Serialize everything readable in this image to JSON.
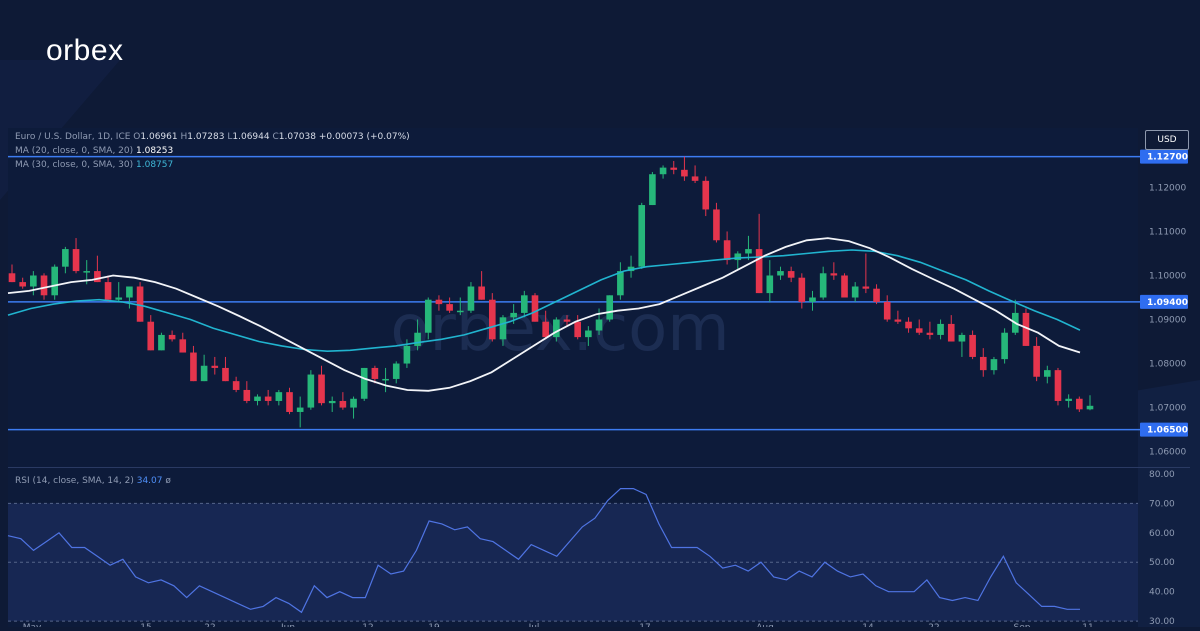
{
  "brand": {
    "logo_text": "orbex",
    "watermark": "orbex.com"
  },
  "legend": {
    "symbol": "Euro / U.S. Dollar, 1D, ICE",
    "o_label": "O",
    "o": "1.06961",
    "h_label": "H",
    "h": "1.07283",
    "l_label": "L",
    "l": "1.06944",
    "c_label": "C",
    "c": "1.07038",
    "change": "+0.00073 (+0.07%)",
    "ma20_label": "MA (20, close, 0, SMA, 20)",
    "ma20_value": "1.08253",
    "ma30_label": "MA (30, close, 0, SMA, 30)",
    "ma30_value": "1.08757",
    "rsi_label": "RSI (14, close, SMA, 14, 2)",
    "rsi_value": "34.07",
    "rsi_extra": "ø"
  },
  "currency_badge": "USD",
  "colors": {
    "background": "#0e1a36",
    "panel": "#0d1b3a",
    "bull": "#26b77a",
    "bear": "#e5354d",
    "level_line": "#3d7cf2",
    "ma20": "#f2f4f8",
    "ma30": "#21b4cf",
    "rsi_line": "#4f74e3",
    "rsi_band": "#1a2a5a",
    "grid_text": "#8f9bb3"
  },
  "chart_data": {
    "type": "candlestick",
    "price_axis": {
      "ylim": [
        1.0565,
        1.1335
      ],
      "ticks": [
        "1.12000",
        "1.11000",
        "1.10000",
        "1.09000",
        "1.08000",
        "1.07000",
        "1.06000"
      ],
      "tick_values": [
        1.12,
        1.11,
        1.1,
        1.09,
        1.08,
        1.07,
        1.06
      ]
    },
    "levels": [
      {
        "value": 1.127,
        "label": "1.12700"
      },
      {
        "value": 1.094,
        "label": "1.09400"
      },
      {
        "value": 1.065,
        "label": "1.06500"
      }
    ],
    "x_labels": [
      "May",
      "15",
      "22",
      "Jun",
      "12",
      "19",
      "Jul",
      "17",
      "Aug",
      "14",
      "22",
      "Sep",
      "11"
    ],
    "candles": [
      [
        1.1005,
        1.1025,
        1.0985,
        1.0985
      ],
      [
        1.0985,
        1.0995,
        1.097,
        1.0975
      ],
      [
        1.0975,
        1.101,
        1.0955,
        1.1
      ],
      [
        1.1,
        1.1005,
        1.0945,
        1.0955
      ],
      [
        1.0955,
        1.1025,
        1.0945,
        1.102
      ],
      [
        1.102,
        1.1065,
        1.1005,
        1.106
      ],
      [
        1.106,
        1.1085,
        1.1005,
        1.101
      ],
      [
        1.101,
        1.1035,
        1.098,
        1.101
      ],
      [
        1.101,
        1.1045,
        1.0985,
        1.0985
      ],
      [
        1.0985,
        1.1,
        1.094,
        1.0945
      ],
      [
        1.0945,
        1.0985,
        1.094,
        1.095
      ],
      [
        1.095,
        1.0975,
        1.0925,
        1.0975
      ],
      [
        1.0975,
        1.0985,
        1.0895,
        1.0895
      ],
      [
        1.0895,
        1.091,
        1.083,
        1.083
      ],
      [
        1.083,
        1.087,
        1.083,
        1.0865
      ],
      [
        1.0865,
        1.0875,
        1.085,
        1.0855
      ],
      [
        1.0855,
        1.087,
        1.0825,
        1.0825
      ],
      [
        1.0825,
        1.084,
        1.076,
        1.076
      ],
      [
        1.076,
        1.082,
        1.076,
        1.0795
      ],
      [
        1.0795,
        1.0815,
        1.0775,
        1.079
      ],
      [
        1.079,
        1.0815,
        1.076,
        1.076
      ],
      [
        1.076,
        1.077,
        1.0735,
        1.074
      ],
      [
        1.074,
        1.076,
        1.071,
        1.0715
      ],
      [
        1.0715,
        1.073,
        1.0705,
        1.0725
      ],
      [
        1.0725,
        1.074,
        1.0705,
        1.0715
      ],
      [
        1.0715,
        1.074,
        1.0705,
        1.0735
      ],
      [
        1.0735,
        1.0745,
        1.0685,
        1.069
      ],
      [
        1.069,
        1.0725,
        1.0655,
        1.07
      ],
      [
        1.07,
        1.0785,
        1.0695,
        1.0775
      ],
      [
        1.0775,
        1.0795,
        1.0705,
        1.071
      ],
      [
        1.071,
        1.0725,
        1.069,
        1.0715
      ],
      [
        1.0715,
        1.0735,
        1.0695,
        1.07
      ],
      [
        1.07,
        1.0725,
        1.0675,
        1.072
      ],
      [
        1.072,
        1.079,
        1.0715,
        1.079
      ],
      [
        1.079,
        1.0795,
        1.0755,
        1.0765
      ],
      [
        1.0765,
        1.079,
        1.0735,
        1.0765
      ],
      [
        1.0765,
        1.0805,
        1.0755,
        1.08
      ],
      [
        1.08,
        1.0855,
        1.079,
        1.084
      ],
      [
        1.084,
        1.09,
        1.083,
        1.087
      ],
      [
        1.087,
        1.095,
        1.0855,
        1.0945
      ],
      [
        1.0945,
        1.0955,
        1.092,
        1.0935
      ],
      [
        1.0935,
        1.095,
        1.0915,
        1.092
      ],
      [
        1.092,
        1.095,
        1.091,
        1.092
      ],
      [
        1.092,
        1.0985,
        1.0915,
        1.0975
      ],
      [
        1.0975,
        1.101,
        1.0945,
        1.0945
      ],
      [
        1.0945,
        1.096,
        1.085,
        1.0855
      ],
      [
        1.0855,
        1.091,
        1.084,
        1.0905
      ],
      [
        1.0905,
        1.0935,
        1.089,
        1.0915
      ],
      [
        1.0915,
        1.0965,
        1.0905,
        1.0955
      ],
      [
        1.0955,
        1.096,
        1.0895,
        1.0895
      ],
      [
        1.0895,
        1.092,
        1.0855,
        1.086
      ],
      [
        1.086,
        1.0905,
        1.085,
        1.09
      ],
      [
        1.09,
        1.091,
        1.0885,
        1.0895
      ],
      [
        1.0895,
        1.091,
        1.0855,
        1.086
      ],
      [
        1.086,
        1.0885,
        1.084,
        1.0875
      ],
      [
        1.0875,
        1.0925,
        1.0865,
        1.09
      ],
      [
        1.09,
        1.0955,
        1.0895,
        1.0955
      ],
      [
        1.0955,
        1.103,
        1.0945,
        1.101
      ],
      [
        1.101,
        1.1045,
        1.0995,
        1.102
      ],
      [
        1.102,
        1.1165,
        1.1015,
        1.116
      ],
      [
        1.116,
        1.1235,
        1.116,
        1.123
      ],
      [
        1.123,
        1.125,
        1.122,
        1.1245
      ],
      [
        1.1245,
        1.126,
        1.123,
        1.124
      ],
      [
        1.124,
        1.127,
        1.1215,
        1.1225
      ],
      [
        1.1225,
        1.125,
        1.121,
        1.1215
      ],
      [
        1.1215,
        1.1225,
        1.1135,
        1.115
      ],
      [
        1.115,
        1.1165,
        1.1075,
        1.108
      ],
      [
        1.108,
        1.11,
        1.1025,
        1.1035
      ],
      [
        1.1035,
        1.1055,
        1.1015,
        1.105
      ],
      [
        1.105,
        1.109,
        1.1035,
        1.106
      ],
      [
        1.106,
        1.114,
        1.096,
        1.096
      ],
      [
        1.096,
        1.1035,
        1.094,
        1.1
      ],
      [
        1.1,
        1.102,
        1.099,
        1.101
      ],
      [
        1.101,
        1.102,
        1.0985,
        1.0995
      ],
      [
        1.0995,
        1.1005,
        1.0925,
        1.094
      ],
      [
        1.094,
        1.0965,
        1.092,
        1.095
      ],
      [
        1.095,
        1.102,
        1.0945,
        1.1005
      ],
      [
        1.1005,
        1.103,
        1.099,
        1.1
      ],
      [
        1.1,
        1.1005,
        1.095,
        1.095
      ],
      [
        1.095,
        1.0985,
        1.094,
        1.0975
      ],
      [
        1.0975,
        1.105,
        1.096,
        1.097
      ],
      [
        1.097,
        1.098,
        1.0935,
        1.094
      ],
      [
        1.094,
        1.0955,
        1.0895,
        1.09
      ],
      [
        1.09,
        1.092,
        1.089,
        1.0895
      ],
      [
        1.0895,
        1.0905,
        1.087,
        1.088
      ],
      [
        1.088,
        1.09,
        1.0865,
        1.087
      ],
      [
        1.087,
        1.0895,
        1.0855,
        1.0865
      ],
      [
        1.0865,
        1.09,
        1.0855,
        1.089
      ],
      [
        1.089,
        1.091,
        1.085,
        1.085
      ],
      [
        1.085,
        1.087,
        1.0815,
        1.0865
      ],
      [
        1.0865,
        1.0875,
        1.081,
        1.0815
      ],
      [
        1.0815,
        1.0835,
        1.077,
        1.0785
      ],
      [
        1.0785,
        1.0815,
        1.0775,
        1.081
      ],
      [
        1.081,
        1.088,
        1.08,
        1.087
      ],
      [
        1.087,
        1.0945,
        1.0865,
        1.0915
      ],
      [
        1.0915,
        1.0925,
        1.084,
        1.084
      ],
      [
        1.084,
        1.086,
        1.076,
        1.077
      ],
      [
        1.077,
        1.0795,
        1.0755,
        1.0785
      ],
      [
        1.0785,
        1.079,
        1.0705,
        1.0715
      ],
      [
        1.0715,
        1.073,
        1.07,
        1.072
      ],
      [
        1.072,
        1.0725,
        1.069,
        1.0696
      ],
      [
        1.0696,
        1.0728,
        1.0694,
        1.0704
      ]
    ],
    "ma20": [
      1.096,
      1.0965,
      1.0975,
      1.0985,
      1.099,
      1.1,
      1.0995,
      1.0985,
      1.097,
      1.095,
      1.093,
      1.0908,
      1.0885,
      1.086,
      1.0835,
      1.081,
      1.0785,
      1.0765,
      1.075,
      1.074,
      1.0738,
      1.0745,
      1.076,
      1.078,
      1.081,
      1.084,
      1.087,
      1.0895,
      1.0912,
      1.092,
      1.0925,
      1.0935,
      1.0955,
      1.0975,
      1.0995,
      1.102,
      1.1045,
      1.1065,
      1.108,
      1.1085,
      1.1078,
      1.1062,
      1.104,
      1.1015,
      1.0992,
      1.097,
      1.0945,
      1.092,
      1.089,
      1.087,
      1.084,
      1.0825
    ],
    "ma30": [
      1.091,
      1.0925,
      1.0935,
      1.0942,
      1.0945,
      1.094,
      1.093,
      1.0915,
      1.09,
      1.088,
      1.0865,
      1.085,
      1.084,
      1.0832,
      1.0828,
      1.083,
      1.0835,
      1.084,
      1.0848,
      1.0855,
      1.0865,
      1.088,
      1.0895,
      1.0915,
      1.094,
      1.0965,
      1.099,
      1.101,
      1.102,
      1.1025,
      1.103,
      1.1035,
      1.104,
      1.1042,
      1.1045,
      1.105,
      1.1055,
      1.1058,
      1.1055,
      1.1045,
      1.103,
      1.101,
      1.099,
      1.0965,
      1.0942,
      1.092,
      1.09,
      1.0876
    ],
    "rsi": {
      "ylim": [
        28,
        82
      ],
      "ticks": [
        "80.00",
        "70.00",
        "60.00",
        "50.00",
        "40.00",
        "30.00"
      ],
      "tick_values": [
        80,
        70,
        60,
        50,
        40,
        30
      ],
      "upper": 70,
      "lower": 30,
      "mid": 50,
      "values": [
        59,
        58,
        54,
        57,
        60,
        55,
        55,
        52,
        49,
        51,
        45,
        43,
        44,
        42,
        38,
        42,
        40,
        38,
        36,
        34,
        35,
        38,
        36,
        33,
        42,
        38,
        40,
        38,
        38,
        49,
        46,
        47,
        54,
        64,
        63,
        61,
        62,
        58,
        57,
        54,
        51,
        56,
        54,
        52,
        57,
        62,
        65,
        71,
        75,
        75,
        73,
        63,
        55,
        55,
        55,
        52,
        48,
        49,
        47,
        50,
        45,
        44,
        47,
        45,
        50,
        47,
        45,
        46,
        42,
        40,
        40,
        40,
        44,
        38,
        37,
        38,
        37,
        45,
        52,
        43,
        39,
        35,
        35,
        34,
        34
      ]
    }
  }
}
